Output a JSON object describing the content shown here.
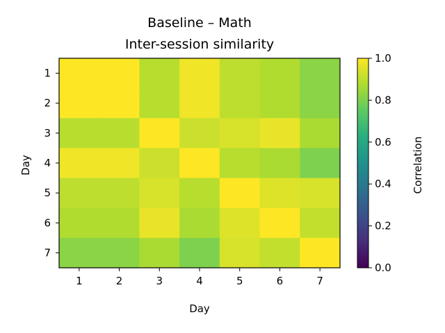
{
  "chart_data": {
    "type": "heatmap",
    "title": "Baseline – Math",
    "subtitle": "Inter-session similarity",
    "xlabel": "Day",
    "ylabel": "Day",
    "x_categories": [
      "1",
      "2",
      "3",
      "4",
      "5",
      "6",
      "7"
    ],
    "y_categories": [
      "1",
      "2",
      "3",
      "4",
      "5",
      "6",
      "7"
    ],
    "values": [
      [
        1.0,
        1.0,
        0.89,
        0.98,
        0.9,
        0.88,
        0.82
      ],
      [
        1.0,
        1.0,
        0.89,
        0.98,
        0.9,
        0.88,
        0.82
      ],
      [
        0.89,
        0.89,
        1.0,
        0.92,
        0.94,
        0.97,
        0.87
      ],
      [
        0.98,
        0.98,
        0.92,
        1.0,
        0.89,
        0.87,
        0.8
      ],
      [
        0.9,
        0.9,
        0.94,
        0.89,
        1.0,
        0.95,
        0.94
      ],
      [
        0.88,
        0.88,
        0.97,
        0.87,
        0.95,
        1.0,
        0.91
      ],
      [
        0.82,
        0.82,
        0.87,
        0.8,
        0.94,
        0.91,
        1.0
      ]
    ],
    "colormap": "viridis",
    "colorbar": {
      "label": "Correlation",
      "range": [
        0.0,
        1.0
      ],
      "ticks": [
        "0.0",
        "0.2",
        "0.4",
        "0.6",
        "0.8",
        "1.0"
      ]
    }
  }
}
